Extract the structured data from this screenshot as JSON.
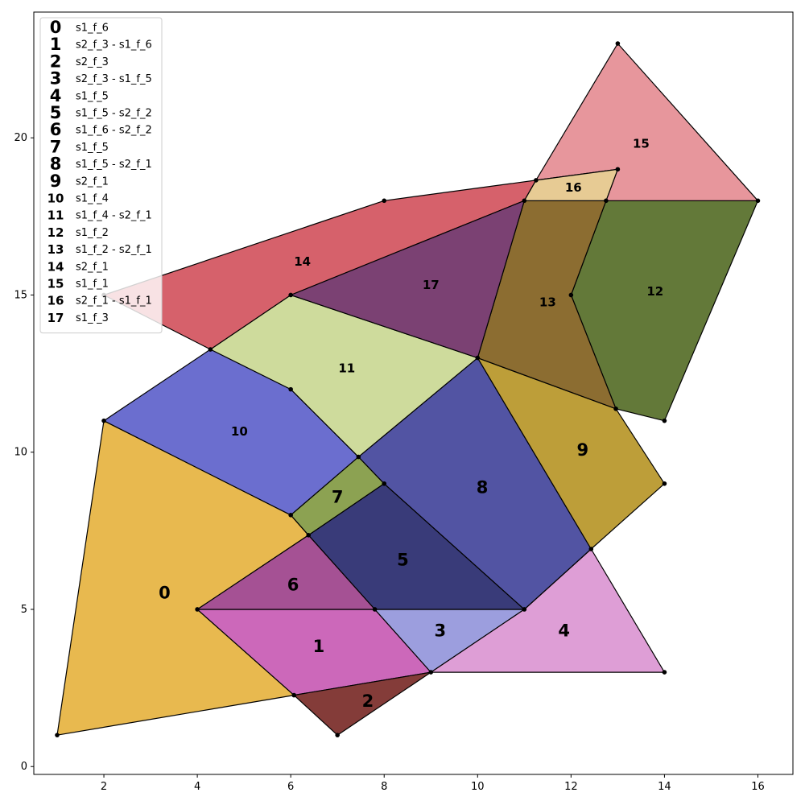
{
  "chart_data": {
    "type": "polygon-partition",
    "xlim": [
      0.5,
      16.75
    ],
    "ylim": [
      -0.25,
      24
    ],
    "x_ticks": [
      2,
      4,
      6,
      8,
      10,
      12,
      14,
      16
    ],
    "y_ticks": [
      0,
      5,
      10,
      15,
      20
    ],
    "legend_placement": "top-left",
    "regions": [
      {
        "id": "0",
        "label": "s1_f_6",
        "color": "#e8b94f",
        "label_pos": [
          3.3,
          5.5
        ],
        "points": [
          [
            1,
            1
          ],
          [
            6.07,
            2.27
          ],
          [
            4,
            5
          ],
          [
            6.38,
            7.36
          ],
          [
            6,
            8
          ],
          [
            2,
            11
          ]
        ]
      },
      {
        "id": "1",
        "label": "s2_f_3 - s1_f_6",
        "color": "#cc68ba",
        "label_pos": [
          6.6,
          3.8
        ],
        "points": [
          [
            4,
            5
          ],
          [
            7.8,
            5
          ],
          [
            9,
            3
          ],
          [
            6.07,
            2.27
          ]
        ]
      },
      {
        "id": "2",
        "label": "s2_f_3",
        "color": "#843c39",
        "label_pos": [
          7.65,
          2.05
        ],
        "points": [
          [
            6.07,
            2.27
          ],
          [
            9,
            3
          ],
          [
            7,
            1
          ]
        ]
      },
      {
        "id": "3",
        "label": "s2_f_3 - s1_f_5",
        "color": "#9c9ede",
        "label_pos": [
          9.2,
          4.3
        ],
        "points": [
          [
            7.8,
            5
          ],
          [
            11,
            5
          ],
          [
            9,
            3
          ]
        ]
      },
      {
        "id": "4",
        "label": "s1_f_5",
        "color": "#de9ed6",
        "label_pos": [
          11.85,
          4.3
        ],
        "points": [
          [
            11,
            5
          ],
          [
            12.43,
            6.92
          ],
          [
            14,
            3
          ],
          [
            9,
            3
          ]
        ]
      },
      {
        "id": "5",
        "label": "s1_f_5 - s2_f_2",
        "color": "#393b79",
        "label_pos": [
          8.4,
          6.55
        ],
        "points": [
          [
            6.38,
            7.36
          ],
          [
            8,
            9
          ],
          [
            11,
            5
          ],
          [
            7.8,
            5
          ]
        ]
      },
      {
        "id": "6",
        "label": "s1_f_6 - s2_f_2",
        "color": "#a55194",
        "label_pos": [
          6.05,
          5.75
        ],
        "points": [
          [
            4,
            5
          ],
          [
            7.8,
            5
          ],
          [
            6.38,
            7.36
          ]
        ]
      },
      {
        "id": "7",
        "label": "s1_f_5",
        "color": "#8ca252",
        "label_pos": [
          7.0,
          8.55
        ],
        "points": [
          [
            6,
            8
          ],
          [
            6.38,
            7.36
          ],
          [
            8,
            9
          ],
          [
            7.45,
            9.85
          ]
        ]
      },
      {
        "id": "8",
        "label": "s1_f_5 - s2_f_1",
        "color": "#5254a3",
        "label_pos": [
          10.1,
          8.85
        ],
        "points": [
          [
            7.45,
            9.85
          ],
          [
            8,
            9
          ],
          [
            11,
            5
          ],
          [
            12.43,
            6.92
          ],
          [
            10,
            13
          ]
        ]
      },
      {
        "id": "9",
        "label": "s2_f_1",
        "color": "#bd9e39",
        "label_pos": [
          12.25,
          10.05
        ],
        "points": [
          [
            10,
            13
          ],
          [
            12.43,
            6.92
          ],
          [
            14,
            9
          ],
          [
            12.96,
            11.38
          ]
        ]
      },
      {
        "id": "10",
        "label": "s1_f_4",
        "color": "#6b6ecf",
        "label_pos": [
          4.9,
          10.65
        ],
        "points": [
          [
            2,
            11
          ],
          [
            4.28,
            13.27
          ],
          [
            6,
            12
          ],
          [
            7.45,
            9.85
          ],
          [
            6,
            8
          ]
        ]
      },
      {
        "id": "11",
        "label": "s1_f_4 - s2_f_1",
        "color": "#cedb9c",
        "label_pos": [
          7.2,
          12.65
        ],
        "points": [
          [
            4.28,
            13.27
          ],
          [
            6,
            15
          ],
          [
            10,
            13
          ],
          [
            7.45,
            9.85
          ],
          [
            6,
            12
          ]
        ]
      },
      {
        "id": "12",
        "label": "s1_f_2",
        "color": "#637939",
        "label_pos": [
          13.8,
          15.1
        ],
        "points": [
          [
            12.75,
            18
          ],
          [
            16,
            18
          ],
          [
            14,
            11
          ],
          [
            12.96,
            11.38
          ],
          [
            12,
            15
          ]
        ]
      },
      {
        "id": "13",
        "label": "s1_f_2 - s2_f_1",
        "color": "#8c6d31",
        "label_pos": [
          11.5,
          14.75
        ],
        "points": [
          [
            11,
            18
          ],
          [
            12.75,
            18
          ],
          [
            12,
            15
          ],
          [
            12.96,
            11.38
          ],
          [
            10,
            13
          ]
        ]
      },
      {
        "id": "14",
        "label": "s2_f_1",
        "color": "#d6616b",
        "label_pos": [
          6.25,
          16.05
        ],
        "points": [
          [
            2,
            15
          ],
          [
            8,
            18
          ],
          [
            11.25,
            18.65
          ],
          [
            11,
            18
          ],
          [
            6,
            15
          ],
          [
            4.28,
            13.27
          ]
        ]
      },
      {
        "id": "15",
        "label": "s1_f_1",
        "color": "#e7969c",
        "label_pos": [
          13.5,
          19.8
        ],
        "points": [
          [
            11.25,
            18.65
          ],
          [
            13,
            23
          ],
          [
            16,
            18
          ],
          [
            12.75,
            18
          ],
          [
            13,
            19
          ]
        ]
      },
      {
        "id": "16",
        "label": "s2_f_1 - s1_f_1",
        "color": "#e7cb94",
        "label_pos": [
          12.05,
          18.4
        ],
        "points": [
          [
            11.25,
            18.65
          ],
          [
            13,
            19
          ],
          [
            12.75,
            18
          ],
          [
            11,
            18
          ]
        ]
      },
      {
        "id": "17",
        "label": "s1_f_3",
        "color": "#7b4173",
        "label_pos": [
          9.0,
          15.3
        ],
        "points": [
          [
            6,
            15
          ],
          [
            11,
            18
          ],
          [
            10,
            13
          ]
        ]
      }
    ],
    "vertices": [
      [
        1,
        1
      ],
      [
        7,
        1
      ],
      [
        6.07,
        2.27
      ],
      [
        9,
        3
      ],
      [
        14,
        3
      ],
      [
        4,
        5
      ],
      [
        7.8,
        5
      ],
      [
        11,
        5
      ],
      [
        12.43,
        6.92
      ],
      [
        6.38,
        7.36
      ],
      [
        6,
        8
      ],
      [
        8,
        9
      ],
      [
        7.45,
        9.85
      ],
      [
        14,
        9
      ],
      [
        2,
        11
      ],
      [
        14,
        11
      ],
      [
        12.96,
        11.38
      ],
      [
        6,
        12
      ],
      [
        10,
        13
      ],
      [
        4.28,
        13.27
      ],
      [
        6,
        15
      ],
      [
        12,
        15
      ],
      [
        2,
        15
      ],
      [
        8,
        18
      ],
      [
        11,
        18
      ],
      [
        12.75,
        18
      ],
      [
        16,
        18
      ],
      [
        11.25,
        18.65
      ],
      [
        13,
        19
      ],
      [
        13,
        23
      ]
    ]
  }
}
